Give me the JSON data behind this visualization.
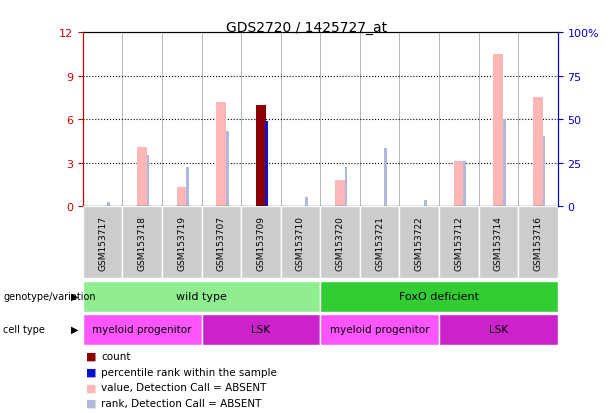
{
  "title": "GDS2720 / 1425727_at",
  "samples": [
    "GSM153717",
    "GSM153718",
    "GSM153719",
    "GSM153707",
    "GSM153709",
    "GSM153710",
    "GSM153720",
    "GSM153721",
    "GSM153722",
    "GSM153712",
    "GSM153714",
    "GSM153716"
  ],
  "ylim_left": [
    0,
    12
  ],
  "ylim_right": [
    0,
    100
  ],
  "yticks_left": [
    0,
    3,
    6,
    9,
    12
  ],
  "yticks_right": [
    0,
    25,
    50,
    75,
    100
  ],
  "ytick_labels_left": [
    "0",
    "3",
    "6",
    "9",
    "12"
  ],
  "ytick_labels_right": [
    "0",
    "25",
    "50",
    "75",
    "100%"
  ],
  "bar_pink_values": [
    0,
    4.1,
    1.3,
    7.2,
    0,
    0,
    1.8,
    0,
    0,
    3.1,
    10.5,
    7.5
  ],
  "bar_pink_rank": [
    0.3,
    3.5,
    2.7,
    5.2,
    0,
    0.6,
    2.7,
    4.0,
    0.4,
    3.1,
    6.0,
    4.8
  ],
  "bar_red_values": [
    0,
    0,
    0,
    0,
    7.0,
    0,
    0,
    0,
    0,
    0,
    0,
    0
  ],
  "bar_blue_rank": [
    0,
    0,
    0,
    0,
    5.9,
    0,
    0,
    0,
    0,
    0,
    0,
    0
  ],
  "pink_bar_color": "#FFB6B6",
  "pink_rank_color": "#B0B8DD",
  "dark_red_color": "#8B0000",
  "blue_color": "#1010CC",
  "genotype_groups": [
    {
      "label": "wild type",
      "start": 0,
      "end": 5,
      "color": "#90EE90"
    },
    {
      "label": "FoxO deficient",
      "start": 6,
      "end": 11,
      "color": "#32CD32"
    }
  ],
  "cell_type_groups": [
    {
      "label": "myeloid progenitor",
      "start": 0,
      "end": 2,
      "color": "#FF55FF"
    },
    {
      "label": "LSK",
      "start": 3,
      "end": 5,
      "color": "#CC22CC"
    },
    {
      "label": "myeloid progenitor",
      "start": 6,
      "end": 8,
      "color": "#FF55FF"
    },
    {
      "label": "LSK",
      "start": 9,
      "end": 11,
      "color": "#CC22CC"
    }
  ],
  "legend_items": [
    {
      "label": "count",
      "color": "#8B0000"
    },
    {
      "label": "percentile rank within the sample",
      "color": "#1010CC"
    },
    {
      "label": "value, Detection Call = ABSENT",
      "color": "#FFB6B6"
    },
    {
      "label": "rank, Detection Call = ABSENT",
      "color": "#B0B8DD"
    }
  ],
  "background_color": "#FFFFFF",
  "left_axis_color": "#CC0000",
  "right_axis_color": "#0000CC",
  "sample_bg_color": "#CCCCCC"
}
